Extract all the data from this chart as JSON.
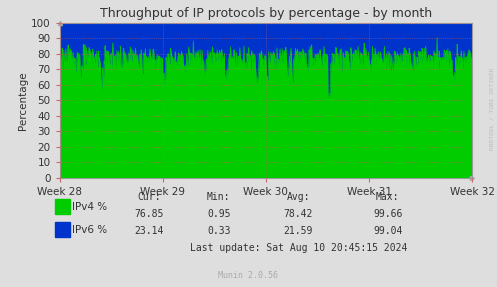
{
  "title": "Throughput of IP protocols by percentage - by month",
  "ylabel": "Percentage",
  "ylim": [
    0,
    100
  ],
  "yticks": [
    0,
    10,
    20,
    30,
    40,
    50,
    60,
    70,
    80,
    90,
    100
  ],
  "xtick_labels": [
    "Week 28",
    "Week 29",
    "Week 30",
    "Week 31",
    "Week 32"
  ],
  "ipv4_avg": 78.42,
  "ipv4_min": 0.95,
  "ipv4_max": 99.66,
  "ipv4_cur": 76.85,
  "ipv6_avg": 21.59,
  "ipv6_min": 0.33,
  "ipv6_max": 99.04,
  "ipv6_cur": 23.14,
  "ipv4_color": "#00cc00",
  "ipv6_color": "#0033cc",
  "bg_color": "#dedede",
  "plot_bg_color": "#dedede",
  "grid_color": "#ff6666",
  "grid_color_major": "#cc0000",
  "title_fontsize": 9,
  "axis_fontsize": 7.5,
  "legend_fontsize": 7.5,
  "watermark": "RRDTOOL / TOBI OETIKER",
  "footer": "Munin 2.0.56",
  "last_update": "Last update: Sat Aug 10 20:45:15 2024",
  "n_points": 800,
  "ipv4_noise_std": 3.5,
  "ipv4_mean": 78.0
}
